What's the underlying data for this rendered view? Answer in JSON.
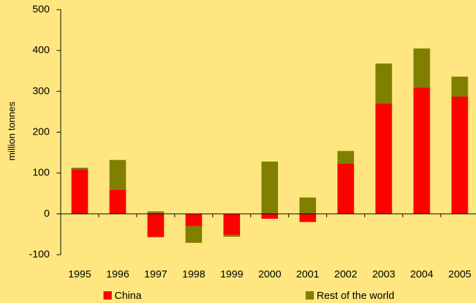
{
  "chart_data": {
    "type": "bar",
    "stacked": true,
    "y_label": "million tonnes",
    "categories": [
      "1995",
      "1996",
      "1997",
      "1998",
      "1999",
      "2000",
      "2001",
      "2002",
      "2003",
      "2004",
      "2005"
    ],
    "series": [
      {
        "name": "China",
        "color": "#ff0000",
        "values": [
          109,
          59,
          -57,
          -30,
          -51,
          -12,
          -20,
          123,
          270,
          309,
          287
        ]
      },
      {
        "name": "Rest of the world",
        "color": "#808000",
        "values": [
          4,
          73,
          6,
          -41,
          -5,
          128,
          40,
          31,
          98,
          96,
          49
        ]
      }
    ],
    "ylim": [
      -100,
      500
    ],
    "yticks": [
      -100,
      0,
      100,
      200,
      300,
      400,
      500
    ]
  }
}
